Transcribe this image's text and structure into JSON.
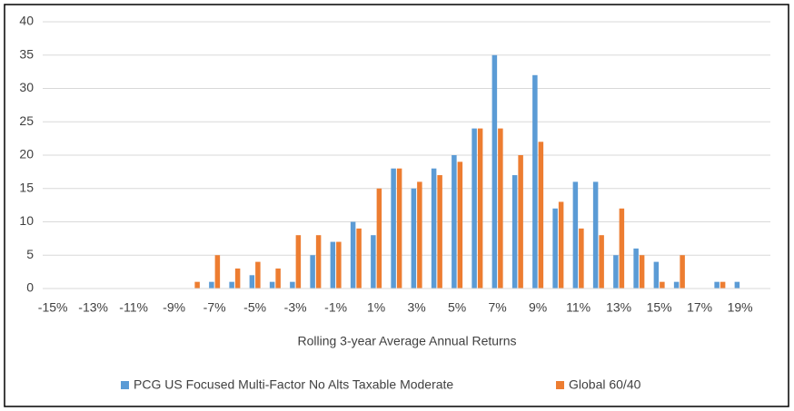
{
  "chart_data": {
    "type": "bar",
    "xlabel": "Rolling 3-year Average Annual Returns",
    "categories": [
      "-15%",
      null,
      "-13%",
      null,
      "-11%",
      null,
      "-9%",
      null,
      "-7%",
      null,
      "-5%",
      null,
      "-3%",
      null,
      "-1%",
      null,
      "1%",
      null,
      "3%",
      null,
      "5%",
      null,
      "7%",
      null,
      "9%",
      null,
      "11%",
      null,
      "13%",
      null,
      "15%",
      null,
      "17%",
      null,
      "19%",
      null
    ],
    "series": [
      {
        "name": "PCG US Focused Multi-Factor No Alts Taxable Moderate",
        "color": "#5b9bd5",
        "values": [
          0,
          0,
          0,
          0,
          0,
          0,
          0,
          0,
          1,
          1,
          2,
          1,
          1,
          5,
          7,
          10,
          8,
          18,
          15,
          18,
          20,
          24,
          35,
          17,
          32,
          12,
          16,
          16,
          5,
          6,
          4,
          1,
          0,
          1,
          1,
          0
        ]
      },
      {
        "name": "Global 60/40",
        "color": "#ed7d31",
        "values": [
          0,
          0,
          0,
          0,
          0,
          0,
          0,
          1,
          5,
          3,
          4,
          3,
          8,
          8,
          7,
          9,
          15,
          18,
          16,
          17,
          19,
          24,
          24,
          20,
          22,
          13,
          9,
          8,
          12,
          5,
          1,
          5,
          0,
          1,
          0,
          0
        ]
      }
    ],
    "ylim": [
      0,
      40
    ],
    "yticks": [
      0,
      5,
      10,
      15,
      20,
      25,
      30,
      35,
      40
    ],
    "grid": true,
    "legend": "bottom"
  }
}
